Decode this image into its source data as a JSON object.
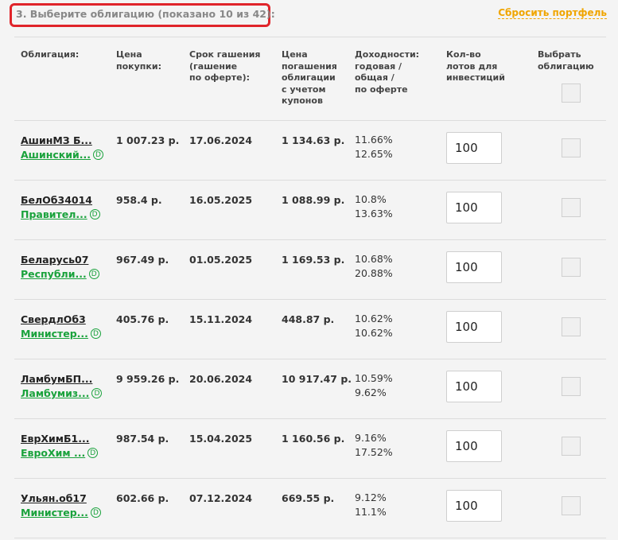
{
  "step_title": "3. Выберите облигацию (показано 10 из 42):",
  "reset_label": "Сбросить портфель",
  "columns": {
    "bond": "Облигация:",
    "price": "Цена\nпокупки:",
    "maturity": "Срок гашения\n(гашение\nпо оферте):",
    "redeem": "Цена\nпогашения\nоблигации\nс учетом\nкупонов",
    "yield": "Доходности:\nгодовая /\nобщая /\nпо оферте",
    "lots": "Кол-во\nлотов для\nинвестиций",
    "select": "Выбрать\nоблигацию"
  },
  "rows": [
    {
      "bond": "АшинМЗ Б...",
      "issuer": "Ашинский...",
      "price": "1 007.23 р.",
      "maturity": "17.06.2024",
      "redeem": "1 134.63 р.",
      "yield_annual": "11.66%",
      "yield_total": "12.65%",
      "lots": "100"
    },
    {
      "bond": "БелОб34014",
      "issuer": "Правител...",
      "price": "958.4 р.",
      "maturity": "16.05.2025",
      "redeem": "1 088.99 р.",
      "yield_annual": "10.8%",
      "yield_total": "13.63%",
      "lots": "100"
    },
    {
      "bond": "Беларусь07",
      "issuer": "Республи...",
      "price": "967.49 р.",
      "maturity": "01.05.2025",
      "redeem": "1 169.53 р.",
      "yield_annual": "10.68%",
      "yield_total": "20.88%",
      "lots": "100"
    },
    {
      "bond": "СвердлОб3",
      "issuer": "Министер...",
      "price": "405.76 р.",
      "maturity": "15.11.2024",
      "redeem": "448.87 р.",
      "yield_annual": "10.62%",
      "yield_total": "10.62%",
      "lots": "100"
    },
    {
      "bond": "ЛамбумБП...",
      "issuer": "Ламбумиз...",
      "price": "9 959.26 р.",
      "maturity": "20.06.2024",
      "redeem": "10 917.47 р.",
      "yield_annual": "10.59%",
      "yield_total": "9.62%",
      "lots": "100"
    },
    {
      "bond": "ЕврХимБ1...",
      "issuer": "ЕвроХим ...",
      "price": "987.54 р.",
      "maturity": "15.04.2025",
      "redeem": "1 160.56 р.",
      "yield_annual": "9.16%",
      "yield_total": "17.52%",
      "lots": "100"
    },
    {
      "bond": "Ульян.об17",
      "issuer": "Министер...",
      "price": "602.66 р.",
      "maturity": "07.12.2024",
      "redeem": "669.55 р.",
      "yield_annual": "9.12%",
      "yield_total": "11.1%",
      "lots": "100"
    }
  ],
  "icon_label": "D",
  "colors": {
    "accent_green": "#1aa23c",
    "reset_orange": "#f0a500",
    "highlight_red": "#e0242a"
  }
}
